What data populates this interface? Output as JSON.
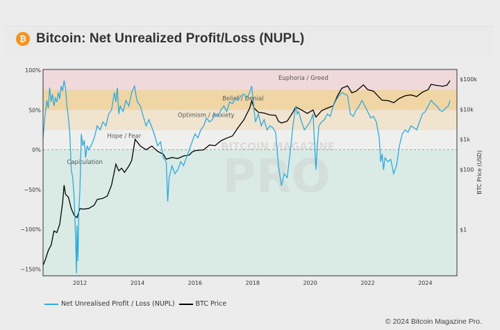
{
  "header": {
    "title": "Bitcoin: Net Unrealized Profit/Loss (NUPL)",
    "logo_icon": "bitcoin-icon",
    "logo_glyph": "₿"
  },
  "footer": {
    "copyright": "© 2024 Bitcoin Magazine Pro."
  },
  "watermark": {
    "line1": "BITCOIN MAGAZINE",
    "line2": "PRO"
  },
  "legend": [
    {
      "label": "Net Unrealised Profit / Loss (NUPL)",
      "color": "#29abe2"
    },
    {
      "label": "BTC Price",
      "color": "#000000"
    }
  ],
  "chart_data": {
    "type": "line",
    "title": "Bitcoin: Net Unrealized Profit/Loss (NUPL)",
    "xlabel": "",
    "ylabel_left": "",
    "ylabel_right": "BTC Price (USD)",
    "xlim": [
      2010.72,
      2025.1
    ],
    "ylim_left": [
      -160,
      100
    ],
    "ylim_right_log10": [
      -0.75,
      5.3
    ],
    "x_ticks": [
      2012,
      2014,
      2016,
      2018,
      2020,
      2022,
      2024
    ],
    "y_ticks_left": [
      {
        "value": 100,
        "label": "100%"
      },
      {
        "value": 50,
        "label": "50%"
      },
      {
        "value": 0,
        "label": "0%"
      },
      {
        "value": -50,
        "label": "−50%"
      },
      {
        "value": -100,
        "label": "−100%"
      },
      {
        "value": -150,
        "label": "−150%"
      }
    ],
    "y_ticks_right": [
      {
        "value": 100000,
        "label": "$100k"
      },
      {
        "value": 10000,
        "label": "$10k"
      },
      {
        "value": 1000,
        "label": "$1k"
      },
      {
        "value": 100,
        "label": "$100"
      },
      {
        "value": 1,
        "label": "$1"
      }
    ],
    "bands": [
      {
        "name": "Euphoria / Greed",
        "from": 75,
        "to": 100,
        "color": "#f0d9da"
      },
      {
        "name": "Belief / Denial",
        "from": 50,
        "to": 75,
        "color": "#f0d6a4"
      },
      {
        "name": "Optimism / Anxiety",
        "from": 25,
        "to": 50,
        "color": "#f1e4cf"
      },
      {
        "name": "Hope / Fear",
        "from": 0,
        "to": 25,
        "color": "#efefed"
      },
      {
        "name": "Capitulation",
        "from": -160,
        "to": 0,
        "color": "#d9ebe4"
      }
    ],
    "band_labels": [
      {
        "text": "Euphoria / Greed",
        "x": 2018.9,
        "y": 88
      },
      {
        "text": "Belief / Denial",
        "x": 2016.95,
        "y": 62
      },
      {
        "text": "Optimism / Anxiety",
        "x": 2015.4,
        "y": 41
      },
      {
        "text": "Hope / Fear",
        "x": 2012.95,
        "y": 15
      },
      {
        "text": "Capitulation",
        "x": 2011.55,
        "y": -18
      }
    ],
    "grid": false,
    "legend_position": "bottom-left",
    "series": [
      {
        "name": "Net Unrealised Profit / Loss (NUPL)",
        "axis": "left",
        "color": "#29abe2",
        "points": [
          [
            2010.72,
            15
          ],
          [
            2010.78,
            40
          ],
          [
            2010.85,
            62
          ],
          [
            2010.9,
            52
          ],
          [
            2010.95,
            78
          ],
          [
            2011.0,
            60
          ],
          [
            2011.05,
            70
          ],
          [
            2011.1,
            55
          ],
          [
            2011.15,
            65
          ],
          [
            2011.2,
            60
          ],
          [
            2011.25,
            72
          ],
          [
            2011.3,
            64
          ],
          [
            2011.35,
            80
          ],
          [
            2011.4,
            74
          ],
          [
            2011.45,
            87
          ],
          [
            2011.5,
            78
          ],
          [
            2011.55,
            55
          ],
          [
            2011.6,
            40
          ],
          [
            2011.65,
            20
          ],
          [
            2011.7,
            -25
          ],
          [
            2011.75,
            -35
          ],
          [
            2011.8,
            -60
          ],
          [
            2011.85,
            -110
          ],
          [
            2011.88,
            -155
          ],
          [
            2011.9,
            -95
          ],
          [
            2011.93,
            -140
          ],
          [
            2011.96,
            -80
          ],
          [
            2012.0,
            -50
          ],
          [
            2012.05,
            20
          ],
          [
            2012.1,
            5
          ],
          [
            2012.15,
            12
          ],
          [
            2012.2,
            -10
          ],
          [
            2012.25,
            5
          ],
          [
            2012.3,
            0
          ],
          [
            2012.4,
            6
          ],
          [
            2012.5,
            15
          ],
          [
            2012.6,
            30
          ],
          [
            2012.7,
            25
          ],
          [
            2012.8,
            35
          ],
          [
            2012.9,
            30
          ],
          [
            2013.0,
            45
          ],
          [
            2013.1,
            50
          ],
          [
            2013.2,
            72
          ],
          [
            2013.25,
            60
          ],
          [
            2013.3,
            78
          ],
          [
            2013.35,
            45
          ],
          [
            2013.4,
            55
          ],
          [
            2013.5,
            48
          ],
          [
            2013.6,
            62
          ],
          [
            2013.7,
            55
          ],
          [
            2013.8,
            72
          ],
          [
            2013.9,
            80
          ],
          [
            2013.95,
            68
          ],
          [
            2014.0,
            60
          ],
          [
            2014.1,
            55
          ],
          [
            2014.2,
            42
          ],
          [
            2014.3,
            30
          ],
          [
            2014.4,
            38
          ],
          [
            2014.5,
            28
          ],
          [
            2014.6,
            18
          ],
          [
            2014.7,
            5
          ],
          [
            2014.8,
            10
          ],
          [
            2014.9,
            -10
          ],
          [
            2015.0,
            -15
          ],
          [
            2015.05,
            -65
          ],
          [
            2015.1,
            -35
          ],
          [
            2015.2,
            -20
          ],
          [
            2015.3,
            -30
          ],
          [
            2015.4,
            -25
          ],
          [
            2015.5,
            -15
          ],
          [
            2015.6,
            -20
          ],
          [
            2015.7,
            -10
          ],
          [
            2015.8,
            0
          ],
          [
            2015.9,
            10
          ],
          [
            2016.0,
            20
          ],
          [
            2016.1,
            15
          ],
          [
            2016.2,
            25
          ],
          [
            2016.3,
            30
          ],
          [
            2016.4,
            40
          ],
          [
            2016.5,
            35
          ],
          [
            2016.6,
            38
          ],
          [
            2016.7,
            45
          ],
          [
            2016.8,
            42
          ],
          [
            2016.9,
            50
          ],
          [
            2017.0,
            55
          ],
          [
            2017.1,
            48
          ],
          [
            2017.2,
            60
          ],
          [
            2017.3,
            58
          ],
          [
            2017.4,
            65
          ],
          [
            2017.5,
            62
          ],
          [
            2017.6,
            68
          ],
          [
            2017.7,
            70
          ],
          [
            2017.8,
            65
          ],
          [
            2017.9,
            72
          ],
          [
            2017.97,
            80
          ],
          [
            2018.0,
            70
          ],
          [
            2018.05,
            50
          ],
          [
            2018.1,
            35
          ],
          [
            2018.2,
            45
          ],
          [
            2018.3,
            30
          ],
          [
            2018.4,
            38
          ],
          [
            2018.5,
            25
          ],
          [
            2018.6,
            30
          ],
          [
            2018.7,
            28
          ],
          [
            2018.8,
            22
          ],
          [
            2018.9,
            -20
          ],
          [
            2019.0,
            -45
          ],
          [
            2019.1,
            -30
          ],
          [
            2019.2,
            -35
          ],
          [
            2019.3,
            -5
          ],
          [
            2019.4,
            30
          ],
          [
            2019.5,
            55
          ],
          [
            2019.55,
            45
          ],
          [
            2019.6,
            48
          ],
          [
            2019.7,
            35
          ],
          [
            2019.8,
            25
          ],
          [
            2019.9,
            30
          ],
          [
            2020.0,
            35
          ],
          [
            2020.1,
            45
          ],
          [
            2020.2,
            -25
          ],
          [
            2020.25,
            5
          ],
          [
            2020.3,
            30
          ],
          [
            2020.4,
            35
          ],
          [
            2020.5,
            38
          ],
          [
            2020.6,
            45
          ],
          [
            2020.7,
            42
          ],
          [
            2020.8,
            55
          ],
          [
            2020.9,
            62
          ],
          [
            2021.0,
            68
          ],
          [
            2021.1,
            72
          ],
          [
            2021.2,
            70
          ],
          [
            2021.3,
            68
          ],
          [
            2021.4,
            45
          ],
          [
            2021.5,
            42
          ],
          [
            2021.6,
            50
          ],
          [
            2021.7,
            55
          ],
          [
            2021.8,
            62
          ],
          [
            2021.9,
            55
          ],
          [
            2022.0,
            48
          ],
          [
            2022.1,
            40
          ],
          [
            2022.2,
            42
          ],
          [
            2022.3,
            35
          ],
          [
            2022.4,
            15
          ],
          [
            2022.45,
            -15
          ],
          [
            2022.5,
            -5
          ],
          [
            2022.55,
            -25
          ],
          [
            2022.6,
            -10
          ],
          [
            2022.7,
            -15
          ],
          [
            2022.8,
            -12
          ],
          [
            2022.9,
            -30
          ],
          [
            2023.0,
            -20
          ],
          [
            2023.1,
            5
          ],
          [
            2023.2,
            20
          ],
          [
            2023.3,
            25
          ],
          [
            2023.4,
            22
          ],
          [
            2023.5,
            30
          ],
          [
            2023.6,
            28
          ],
          [
            2023.7,
            25
          ],
          [
            2023.8,
            35
          ],
          [
            2023.9,
            45
          ],
          [
            2024.0,
            48
          ],
          [
            2024.1,
            55
          ],
          [
            2024.2,
            62
          ],
          [
            2024.3,
            58
          ],
          [
            2024.4,
            55
          ],
          [
            2024.5,
            50
          ],
          [
            2024.6,
            48
          ],
          [
            2024.7,
            52
          ],
          [
            2024.8,
            55
          ],
          [
            2024.86,
            62
          ]
        ]
      },
      {
        "name": "BTC Price",
        "axis": "right",
        "color": "#000000",
        "points": [
          [
            2010.72,
            0.065
          ],
          [
            2010.8,
            0.1
          ],
          [
            2010.9,
            0.2
          ],
          [
            2010.95,
            0.25
          ],
          [
            2011.0,
            0.3
          ],
          [
            2011.1,
            0.9
          ],
          [
            2011.2,
            0.8
          ],
          [
            2011.3,
            1.5
          ],
          [
            2011.4,
            8
          ],
          [
            2011.45,
            30
          ],
          [
            2011.5,
            15
          ],
          [
            2011.6,
            12
          ],
          [
            2011.7,
            5
          ],
          [
            2011.8,
            3
          ],
          [
            2011.9,
            2.5
          ],
          [
            2012.0,
            5
          ],
          [
            2012.1,
            4.8
          ],
          [
            2012.3,
            5
          ],
          [
            2012.5,
            6.5
          ],
          [
            2012.6,
            10
          ],
          [
            2012.8,
            11
          ],
          [
            2012.95,
            13
          ],
          [
            2013.1,
            30
          ],
          [
            2013.25,
            150
          ],
          [
            2013.35,
            90
          ],
          [
            2013.45,
            110
          ],
          [
            2013.55,
            80
          ],
          [
            2013.7,
            130
          ],
          [
            2013.8,
            200
          ],
          [
            2013.92,
            1000
          ],
          [
            2014.0,
            800
          ],
          [
            2014.1,
            600
          ],
          [
            2014.3,
            450
          ],
          [
            2014.5,
            600
          ],
          [
            2014.7,
            400
          ],
          [
            2014.9,
            320
          ],
          [
            2015.0,
            220
          ],
          [
            2015.2,
            250
          ],
          [
            2015.4,
            230
          ],
          [
            2015.6,
            280
          ],
          [
            2015.8,
            300
          ],
          [
            2015.9,
            380
          ],
          [
            2016.0,
            420
          ],
          [
            2016.3,
            450
          ],
          [
            2016.5,
            650
          ],
          [
            2016.7,
            620
          ],
          [
            2016.9,
            900
          ],
          [
            2017.1,
            1100
          ],
          [
            2017.3,
            1300
          ],
          [
            2017.5,
            2500
          ],
          [
            2017.7,
            4500
          ],
          [
            2017.9,
            11000
          ],
          [
            2017.97,
            19000
          ],
          [
            2018.05,
            11000
          ],
          [
            2018.2,
            8000
          ],
          [
            2018.4,
            7500
          ],
          [
            2018.6,
            6500
          ],
          [
            2018.8,
            6300
          ],
          [
            2018.9,
            4000
          ],
          [
            2019.0,
            3500
          ],
          [
            2019.2,
            4000
          ],
          [
            2019.4,
            8000
          ],
          [
            2019.5,
            12000
          ],
          [
            2019.7,
            9500
          ],
          [
            2019.9,
            7300
          ],
          [
            2020.1,
            9500
          ],
          [
            2020.2,
            5500
          ],
          [
            2020.4,
            9000
          ],
          [
            2020.6,
            11000
          ],
          [
            2020.8,
            13000
          ],
          [
            2020.95,
            28000
          ],
          [
            2021.1,
            50000
          ],
          [
            2021.3,
            60000
          ],
          [
            2021.45,
            35000
          ],
          [
            2021.6,
            40000
          ],
          [
            2021.85,
            65000
          ],
          [
            2022.0,
            45000
          ],
          [
            2022.2,
            40000
          ],
          [
            2022.4,
            25000
          ],
          [
            2022.5,
            20000
          ],
          [
            2022.7,
            19500
          ],
          [
            2022.9,
            16500
          ],
          [
            2023.1,
            23000
          ],
          [
            2023.3,
            28000
          ],
          [
            2023.5,
            30000
          ],
          [
            2023.7,
            26500
          ],
          [
            2023.9,
            37000
          ],
          [
            2024.1,
            45000
          ],
          [
            2024.2,
            68000
          ],
          [
            2024.4,
            62000
          ],
          [
            2024.6,
            58000
          ],
          [
            2024.75,
            63000
          ],
          [
            2024.86,
            90000
          ]
        ]
      }
    ]
  }
}
